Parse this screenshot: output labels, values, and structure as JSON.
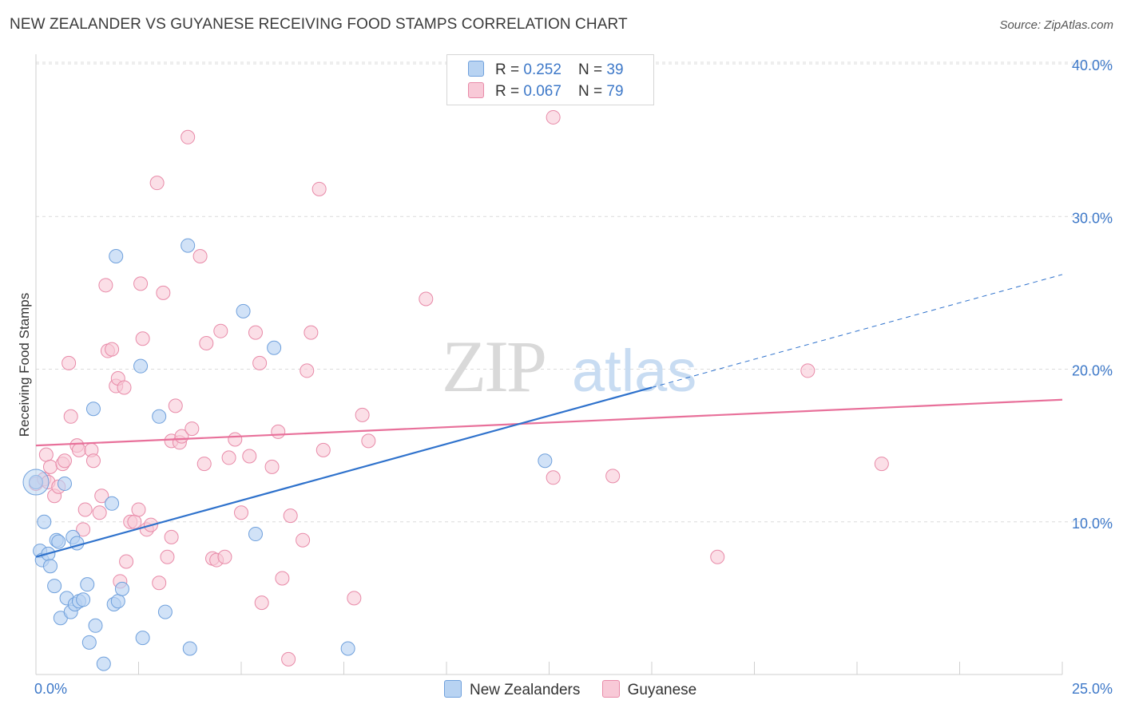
{
  "title": "NEW ZEALANDER VS GUYANESE RECEIVING FOOD STAMPS CORRELATION CHART",
  "source": "Source: ZipAtlas.com",
  "legend": {
    "rows": [
      {
        "r_label": "R = ",
        "r_value": "0.252",
        "n_label": "N = ",
        "n_value": "39"
      },
      {
        "r_label": "R = ",
        "r_value": "0.067",
        "n_label": "N = ",
        "n_value": "79"
      }
    ]
  },
  "bottom_legend": [
    "New Zealanders",
    "Guyanese"
  ],
  "colors": {
    "blue_fill": "#b8d3f2",
    "blue_stroke": "#6fa0dc",
    "blue_line": "#2f72cc",
    "pink_fill": "#f8c9d7",
    "pink_stroke": "#e88aa8",
    "pink_line": "#e8709a",
    "grid": "#dcdcdc",
    "tick_text": "#3d78c8"
  },
  "chart_data": {
    "type": "scatter",
    "title": "NEW ZEALANDER VS GUYANESE RECEIVING FOOD STAMPS CORRELATION CHART",
    "xlabel": "",
    "ylabel": "Receiving Food Stamps",
    "xlim": [
      0,
      25
    ],
    "ylim": [
      0,
      40
    ],
    "x_tick_labels": [
      "0.0%",
      "25.0%"
    ],
    "y_ticks": [
      10,
      20,
      30,
      40
    ],
    "y_tick_labels": [
      "10.0%",
      "20.0%",
      "30.0%",
      "40.0%"
    ],
    "watermark": {
      "zip": "ZIP",
      "atlas": "atlas"
    },
    "series": [
      {
        "name": "New Zealanders",
        "r": 0.252,
        "n": 39,
        "trend": {
          "x": [
            0,
            15
          ],
          "y": [
            7.7,
            18.8
          ]
        },
        "trend_extension": {
          "x": [
            15,
            25
          ],
          "y": [
            18.8,
            26.2
          ]
        },
        "points": [
          [
            0.0,
            12.6
          ],
          [
            0.1,
            8.1
          ],
          [
            0.15,
            7.5
          ],
          [
            0.2,
            10.0
          ],
          [
            0.3,
            7.9
          ],
          [
            0.35,
            7.1
          ],
          [
            0.45,
            5.8
          ],
          [
            0.5,
            8.8
          ],
          [
            0.55,
            8.7
          ],
          [
            0.6,
            3.7
          ],
          [
            0.7,
            12.5
          ],
          [
            0.75,
            5.0
          ],
          [
            0.85,
            4.1
          ],
          [
            0.9,
            9.0
          ],
          [
            0.95,
            4.6
          ],
          [
            1.0,
            8.6
          ],
          [
            1.05,
            4.8
          ],
          [
            1.15,
            4.9
          ],
          [
            1.25,
            5.9
          ],
          [
            1.3,
            2.1
          ],
          [
            1.4,
            17.4
          ],
          [
            1.45,
            3.2
          ],
          [
            1.65,
            0.7
          ],
          [
            1.85,
            11.2
          ],
          [
            1.9,
            4.6
          ],
          [
            1.95,
            27.4
          ],
          [
            2.0,
            4.8
          ],
          [
            2.1,
            5.6
          ],
          [
            2.55,
            20.2
          ],
          [
            2.6,
            2.4
          ],
          [
            3.0,
            16.9
          ],
          [
            3.15,
            4.1
          ],
          [
            3.7,
            28.1
          ],
          [
            3.75,
            1.7
          ],
          [
            5.05,
            23.8
          ],
          [
            5.35,
            9.2
          ],
          [
            5.8,
            21.4
          ],
          [
            7.6,
            1.7
          ],
          [
            12.4,
            14.0
          ]
        ]
      },
      {
        "name": "Guyanese",
        "r": 0.067,
        "n": 79,
        "trend": {
          "x": [
            0,
            25
          ],
          "y": [
            15.0,
            18.0
          ]
        },
        "points": [
          [
            0.0,
            12.5
          ],
          [
            0.2,
            12.8
          ],
          [
            0.25,
            14.4
          ],
          [
            0.3,
            12.6
          ],
          [
            0.35,
            13.6
          ],
          [
            0.45,
            11.7
          ],
          [
            0.55,
            12.3
          ],
          [
            0.65,
            13.8
          ],
          [
            0.7,
            14.0
          ],
          [
            0.8,
            20.4
          ],
          [
            0.85,
            16.9
          ],
          [
            1.0,
            15.0
          ],
          [
            1.05,
            14.7
          ],
          [
            1.15,
            9.5
          ],
          [
            1.2,
            10.8
          ],
          [
            1.35,
            14.7
          ],
          [
            1.4,
            14.0
          ],
          [
            1.55,
            10.6
          ],
          [
            1.6,
            11.7
          ],
          [
            1.7,
            25.5
          ],
          [
            1.75,
            21.2
          ],
          [
            1.85,
            21.3
          ],
          [
            1.95,
            18.9
          ],
          [
            2.0,
            19.4
          ],
          [
            2.05,
            6.1
          ],
          [
            2.15,
            18.8
          ],
          [
            2.2,
            7.4
          ],
          [
            2.3,
            10.0
          ],
          [
            2.4,
            10.0
          ],
          [
            2.5,
            10.8
          ],
          [
            2.55,
            25.6
          ],
          [
            2.6,
            22.0
          ],
          [
            2.7,
            9.5
          ],
          [
            2.8,
            9.8
          ],
          [
            2.95,
            32.2
          ],
          [
            3.0,
            6.0
          ],
          [
            3.1,
            25.0
          ],
          [
            3.2,
            7.7
          ],
          [
            3.3,
            9.0
          ],
          [
            3.3,
            15.3
          ],
          [
            3.4,
            17.6
          ],
          [
            3.5,
            15.2
          ],
          [
            3.55,
            15.6
          ],
          [
            3.7,
            35.2
          ],
          [
            3.8,
            16.1
          ],
          [
            4.0,
            27.4
          ],
          [
            4.1,
            13.8
          ],
          [
            4.15,
            21.7
          ],
          [
            4.3,
            7.6
          ],
          [
            4.4,
            7.5
          ],
          [
            4.5,
            22.5
          ],
          [
            4.6,
            7.7
          ],
          [
            4.7,
            14.2
          ],
          [
            4.85,
            15.4
          ],
          [
            5.0,
            10.6
          ],
          [
            5.2,
            14.3
          ],
          [
            5.35,
            22.4
          ],
          [
            5.45,
            20.4
          ],
          [
            5.5,
            4.7
          ],
          [
            5.75,
            13.6
          ],
          [
            5.9,
            15.9
          ],
          [
            6.0,
            6.3
          ],
          [
            6.15,
            1.0
          ],
          [
            6.2,
            10.4
          ],
          [
            6.5,
            8.8
          ],
          [
            6.6,
            19.9
          ],
          [
            6.7,
            22.4
          ],
          [
            6.9,
            31.8
          ],
          [
            7.0,
            14.7
          ],
          [
            7.75,
            5.0
          ],
          [
            7.95,
            17.0
          ],
          [
            8.1,
            15.3
          ],
          [
            9.5,
            24.6
          ],
          [
            12.6,
            36.5
          ],
          [
            12.6,
            12.9
          ],
          [
            14.05,
            13.0
          ],
          [
            16.6,
            7.7
          ],
          [
            18.8,
            19.9
          ],
          [
            20.6,
            13.8
          ]
        ]
      }
    ]
  }
}
